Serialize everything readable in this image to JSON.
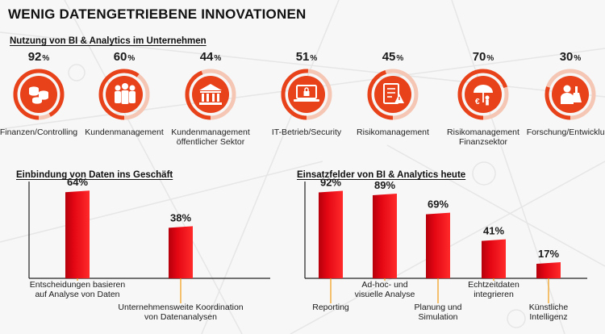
{
  "title": "WENIG DATENGETRIEBENE INNOVATIONEN",
  "usage": {
    "heading": "Nutzung von BI & Analytics im Unternehmen",
    "items": [
      {
        "value": "92",
        "unit": "%",
        "label": "Finanzen/Controlling",
        "icon": "coins-icon"
      },
      {
        "value": "60",
        "unit": "%",
        "label": "Kundenmanagement",
        "icon": "people-icon"
      },
      {
        "value": "44",
        "unit": "%",
        "label": "Kundenmanagement\nöffentlicher Sektor",
        "icon": "bank-building-icon"
      },
      {
        "value": "51",
        "unit": "%",
        "label": "IT-Betrieb/Security",
        "icon": "laptop-lock-icon"
      },
      {
        "value": "45",
        "unit": "%",
        "label": "Risikomanagement",
        "icon": "checklist-warning-icon"
      },
      {
        "value": "70",
        "unit": "%",
        "label": "Risikomanagement\nFinanzsektor",
        "icon": "umbrella-euro-icon"
      },
      {
        "value": "30",
        "unit": "%",
        "label": "Forschung/Entwicklung",
        "icon": "scientist-icon"
      }
    ]
  },
  "colors": {
    "accent": "#e30613",
    "accent_dark": "#b5000c",
    "ring": "#e8421a",
    "ring_light": "#f5c6b4",
    "leader": "#f39c12",
    "axis": "#222222",
    "text": "#1a1a1a"
  },
  "chart_data": [
    {
      "type": "bar",
      "title": "Einbindung von Daten ins Geschäft",
      "categories": [
        "Entscheidungen basieren\nauf Analyse von Daten",
        "Unternehmensweite Koordination\nvon Datenanalysen"
      ],
      "values": [
        64,
        38
      ],
      "value_labels": [
        "64%",
        "38%"
      ],
      "ylim": [
        0,
        100
      ]
    },
    {
      "type": "bar",
      "title": "Einsatzfelder von BI & Analytics heute",
      "categories": [
        "Reporting",
        "Ad-hoc- und\nvisuelle Analyse",
        "Planung und\nSimulation",
        "Echtzeitdaten\nintegrieren",
        "Künstliche\nIntelligenz"
      ],
      "values": [
        92,
        89,
        69,
        41,
        17
      ],
      "value_labels": [
        "92%",
        "89%",
        "69%",
        "41%",
        "17%"
      ],
      "ylim": [
        0,
        100
      ]
    }
  ]
}
